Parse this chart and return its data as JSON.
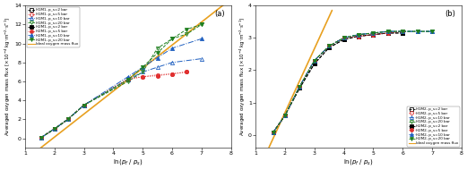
{
  "panel_a": {
    "title": "(a)",
    "ylabel": "Averaged oxygen mass flux [×10⁻⁴ kg·m⁻²·s⁻¹]",
    "xlabel": "ln(ρᶠ / ρₛ)",
    "xlim": [
      1,
      8
    ],
    "ylim": [
      -1,
      14
    ],
    "yticks": [
      0,
      2,
      4,
      6,
      8,
      10,
      12,
      14
    ],
    "xticks": [
      1,
      2,
      3,
      4,
      5,
      6,
      7,
      8
    ],
    "ideal_line": {
      "x": [
        1.45,
        7.8
      ],
      "y": [
        -1.2,
        14.2
      ],
      "color": "#E8A020",
      "lw": 1.2
    },
    "series": [
      {
        "label": "H1M1, p_s=2 bar",
        "color": "#000000",
        "marker": "s",
        "ls": "--",
        "filled": false,
        "lw": 0.7,
        "ms": 3.0,
        "x": [
          1.55,
          2.0,
          2.45,
          3.0
        ],
        "y": [
          0.1,
          1.0,
          2.0,
          3.5
        ]
      },
      {
        "label": "H1M1, p_s=5 bar",
        "color": "#E03030",
        "marker": "o",
        "ls": ":",
        "filled": false,
        "lw": 0.7,
        "ms": 3.0,
        "x": [
          1.55,
          2.0,
          2.45,
          3.0,
          4.5,
          5.0,
          5.5,
          6.0,
          6.5
        ],
        "y": [
          0.1,
          1.0,
          2.0,
          3.5,
          6.2,
          6.5,
          6.7,
          6.8,
          7.0
        ]
      },
      {
        "label": "H1M1, p_s=10 bar",
        "color": "#2060C0",
        "marker": "^",
        "ls": "-.",
        "filled": false,
        "lw": 0.7,
        "ms": 3.0,
        "x": [
          1.55,
          2.0,
          2.45,
          3.0,
          4.5,
          5.0,
          5.5,
          6.0,
          7.0
        ],
        "y": [
          0.1,
          1.0,
          2.0,
          3.5,
          6.2,
          7.0,
          7.5,
          8.0,
          8.4
        ]
      },
      {
        "label": "H1M1, p_s=20 bar",
        "color": "#208020",
        "marker": "v",
        "ls": "--",
        "filled": false,
        "lw": 0.7,
        "ms": 3.0,
        "x": [
          1.55,
          2.0,
          2.45,
          3.0,
          4.5,
          5.0,
          5.5,
          6.0,
          6.5,
          7.0
        ],
        "y": [
          0.1,
          1.0,
          2.0,
          3.5,
          6.0,
          7.0,
          9.5,
          10.5,
          11.0,
          12.0
        ]
      },
      {
        "label": "H2M1, p_s=2 bar",
        "color": "#000000",
        "marker": "s",
        "ls": "--",
        "filled": true,
        "lw": 0.7,
        "ms": 3.0,
        "x": [
          1.55,
          2.0,
          2.45,
          3.0
        ],
        "y": [
          0.1,
          1.0,
          2.0,
          3.5
        ]
      },
      {
        "label": "H2M1, p_s=5 bar",
        "color": "#E03030",
        "marker": "o",
        "ls": ":",
        "filled": true,
        "lw": 0.7,
        "ms": 3.0,
        "x": [
          1.55,
          2.0,
          2.45,
          3.0,
          4.5,
          5.0,
          5.5,
          6.0,
          6.5
        ],
        "y": [
          0.1,
          1.0,
          2.0,
          3.5,
          6.3,
          6.5,
          6.6,
          6.8,
          7.0
        ]
      },
      {
        "label": "H2M1, p_s=10 bar",
        "color": "#2060C0",
        "marker": "^",
        "ls": "-.",
        "filled": true,
        "lw": 0.7,
        "ms": 3.0,
        "x": [
          1.55,
          2.0,
          2.45,
          3.0,
          4.5,
          5.0,
          5.5,
          6.0,
          7.0
        ],
        "y": [
          0.1,
          1.0,
          2.0,
          3.5,
          6.5,
          7.5,
          8.5,
          9.5,
          10.5
        ]
      },
      {
        "label": "H2M1, p_s=20 bar",
        "color": "#208020",
        "marker": "v",
        "ls": "--",
        "filled": true,
        "lw": 0.7,
        "ms": 3.0,
        "x": [
          1.55,
          2.0,
          2.45,
          3.0,
          4.5,
          5.0,
          5.5,
          6.0,
          6.5,
          7.0
        ],
        "y": [
          0.1,
          1.0,
          2.0,
          3.5,
          6.2,
          7.5,
          9.0,
          10.5,
          11.5,
          12.0
        ]
      }
    ]
  },
  "panel_b": {
    "title": "(b)",
    "ylabel": "Averaged oxygen mass flux [×10⁻⁴ kg·m⁻²·s⁻¹]",
    "xlabel": "ln(ρᶠ / ρₛ)",
    "xlim": [
      1,
      8
    ],
    "ylim": [
      -0.4,
      4
    ],
    "yticks": [
      0,
      1,
      2,
      3,
      4
    ],
    "xticks": [
      1,
      2,
      3,
      4,
      5,
      6,
      7,
      8
    ],
    "ideal_line": {
      "x": [
        1.45,
        3.6
      ],
      "y": [
        -0.4,
        3.85
      ],
      "color": "#E8A020",
      "lw": 1.2
    },
    "series": [
      {
        "label": "H1M2, p_s=2 bar",
        "color": "#000000",
        "marker": "s",
        "ls": "--",
        "filled": false,
        "lw": 0.7,
        "ms": 3.0,
        "x": [
          1.6,
          2.0,
          2.5,
          3.0,
          3.5,
          4.0,
          4.5,
          5.0,
          5.5,
          6.0
        ],
        "y": [
          0.08,
          0.6,
          1.45,
          2.2,
          2.7,
          2.95,
          3.05,
          3.1,
          3.15,
          3.15
        ]
      },
      {
        "label": "H1M2, p_s=5 bar",
        "color": "#E03030",
        "marker": "o",
        "ls": ":",
        "filled": false,
        "lw": 0.7,
        "ms": 3.0,
        "x": [
          1.6,
          2.0,
          2.5,
          3.0,
          3.5,
          4.0,
          4.5,
          5.0,
          5.5,
          6.0
        ],
        "y": [
          0.08,
          0.6,
          1.5,
          2.3,
          2.75,
          3.0,
          3.05,
          3.1,
          3.15,
          3.2
        ]
      },
      {
        "label": "H1M2, p_s=10 bar",
        "color": "#2060C0",
        "marker": "^",
        "ls": "-.",
        "filled": false,
        "lw": 0.7,
        "ms": 3.0,
        "x": [
          1.6,
          2.0,
          2.5,
          3.0,
          3.5,
          4.0,
          4.5,
          5.0,
          5.5,
          6.0,
          6.5,
          7.0
        ],
        "y": [
          0.08,
          0.6,
          1.5,
          2.3,
          2.75,
          3.0,
          3.1,
          3.15,
          3.2,
          3.2,
          3.2,
          3.2
        ]
      },
      {
        "label": "H1M2, p_s=20 bar",
        "color": "#208020",
        "marker": "v",
        "ls": "--",
        "filled": false,
        "lw": 0.7,
        "ms": 3.0,
        "x": [
          1.6,
          2.0,
          2.5,
          3.0,
          3.5,
          4.0,
          4.5,
          5.0,
          5.5,
          6.0,
          6.5,
          7.0
        ],
        "y": [
          0.08,
          0.6,
          1.5,
          2.3,
          2.75,
          3.0,
          3.1,
          3.15,
          3.2,
          3.2,
          3.2,
          3.2
        ]
      },
      {
        "label": "H2M2, p_s=2 bar",
        "color": "#000000",
        "marker": "s",
        "ls": "--",
        "filled": true,
        "lw": 0.7,
        "ms": 3.0,
        "x": [
          1.6,
          2.0,
          2.5,
          3.0,
          3.5,
          4.0,
          4.5,
          5.0,
          5.5,
          6.0
        ],
        "y": [
          0.08,
          0.6,
          1.45,
          2.2,
          2.7,
          2.95,
          3.05,
          3.1,
          3.15,
          3.15
        ]
      },
      {
        "label": "H2M2, p_s=5 bar",
        "color": "#E03030",
        "marker": "o",
        "ls": ":",
        "filled": true,
        "lw": 0.7,
        "ms": 3.0,
        "x": [
          1.6,
          2.0,
          2.5,
          3.0,
          3.5,
          4.0,
          4.5,
          5.0,
          5.5,
          6.0
        ],
        "y": [
          0.08,
          0.6,
          1.5,
          2.3,
          2.75,
          3.0,
          3.05,
          3.1,
          3.15,
          3.2
        ]
      },
      {
        "label": "H2M2, p_s=10 bar",
        "color": "#2060C0",
        "marker": "^",
        "ls": "-.",
        "filled": true,
        "lw": 0.7,
        "ms": 3.0,
        "x": [
          1.6,
          2.0,
          2.5,
          3.0,
          3.5,
          4.0,
          4.5,
          5.0,
          5.5,
          6.0,
          6.5,
          7.0
        ],
        "y": [
          0.08,
          0.6,
          1.5,
          2.3,
          2.75,
          3.0,
          3.1,
          3.15,
          3.2,
          3.2,
          3.2,
          3.2
        ]
      },
      {
        "label": "H2M2, p_s=20 bar",
        "color": "#208020",
        "marker": "v",
        "ls": "--",
        "filled": true,
        "lw": 0.7,
        "ms": 3.0,
        "x": [
          1.6,
          2.0,
          2.5,
          3.0,
          3.5,
          4.0,
          4.5,
          5.0,
          5.5,
          6.0,
          6.5,
          7.0
        ],
        "y": [
          0.08,
          0.6,
          1.5,
          2.3,
          2.75,
          3.0,
          3.1,
          3.15,
          3.2,
          3.2,
          3.2,
          3.2
        ]
      }
    ]
  },
  "legend_a_open": [
    {
      "label": "H1M1, p_s=2 bar",
      "color": "#000000",
      "marker": "s",
      "ls": "--"
    },
    {
      "label": "H1M1, p_s=5 bar",
      "color": "#E03030",
      "marker": "o",
      "ls": ":"
    },
    {
      "label": "H1M1, p_s=10 bar",
      "color": "#2060C0",
      "marker": "^",
      "ls": "-."
    },
    {
      "label": "H1M1, p_s=20 bar",
      "color": "#208020",
      "marker": "v",
      "ls": "--"
    }
  ],
  "legend_a_filled": [
    {
      "label": "H2M1, p_s=2 bar",
      "color": "#000000",
      "marker": "s",
      "ls": "--"
    },
    {
      "label": "H2M1, p_s=5 bar",
      "color": "#E03030",
      "marker": "o",
      "ls": ":"
    },
    {
      "label": "H2M1, p_s=10 bar",
      "color": "#2060C0",
      "marker": "^",
      "ls": "-."
    },
    {
      "label": "H2M1, p_s=20 bar",
      "color": "#208020",
      "marker": "v",
      "ls": "--"
    }
  ],
  "legend_b_open": [
    {
      "label": "H1M2, p_s=2 bar",
      "color": "#000000",
      "marker": "s",
      "ls": "--"
    },
    {
      "label": "H1M2, p_s=5 bar",
      "color": "#E03030",
      "marker": "o",
      "ls": ":"
    },
    {
      "label": "H1M2, p_s=10 bar",
      "color": "#2060C0",
      "marker": "^",
      "ls": "-."
    },
    {
      "label": "H1M2, p_s=20 bar",
      "color": "#208020",
      "marker": "v",
      "ls": "--"
    }
  ],
  "legend_b_filled": [
    {
      "label": "H2M2, p_s=2 bar",
      "color": "#000000",
      "marker": "s",
      "ls": "--"
    },
    {
      "label": "H2M2, p_s=5 bar",
      "color": "#E03030",
      "marker": "o",
      "ls": ":"
    },
    {
      "label": "H2M2, p_s=10 bar",
      "color": "#2060C0",
      "marker": "^",
      "ls": "-."
    },
    {
      "label": "H2M2, p_s=20 bar",
      "color": "#208020",
      "marker": "v",
      "ls": "--"
    }
  ],
  "ideal_legend": {
    "label": "Ideal oxygen mass flux",
    "color": "#E8A020"
  }
}
